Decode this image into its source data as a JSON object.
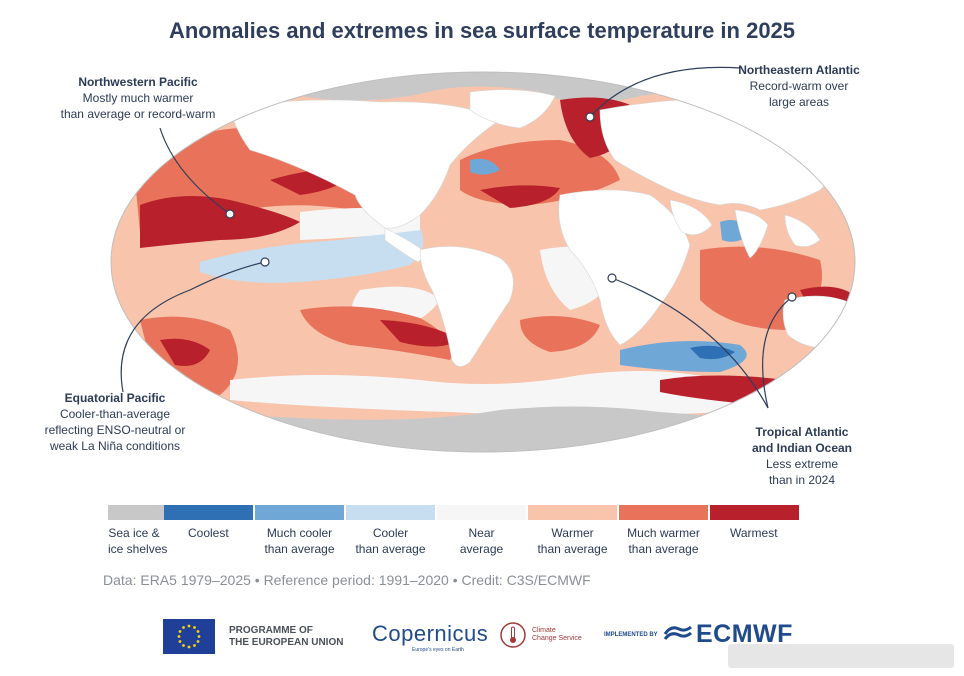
{
  "title": "Anomalies and extremes in sea surface temperature in 2025",
  "annotations": {
    "nw_pacific": {
      "heading": "Northwestern Pacific",
      "lines": [
        "Mostly much warmer",
        "than average or record-warm"
      ]
    },
    "ne_atlantic": {
      "heading": "Northeastern Atlantic",
      "lines": [
        "Record-warm over",
        "large areas"
      ]
    },
    "eq_pacific": {
      "heading": "Equatorial Pacific",
      "lines": [
        "Cooler-than-average",
        "reflecting ENSO-neutral or",
        "weak La Niña conditions"
      ]
    },
    "tropical": {
      "heading_lines": [
        "Tropical Atlantic",
        "and Indian Ocean"
      ],
      "lines": [
        "Less extreme",
        "than in 2024"
      ]
    }
  },
  "legend": [
    {
      "color": "#c8c8c8",
      "label_lines": [
        "Sea ice &",
        "ice shelves"
      ]
    },
    {
      "color": "#2f6fb3",
      "label_lines": [
        "Coolest"
      ]
    },
    {
      "color": "#6fa7d6",
      "label_lines": [
        "Much cooler",
        "than average"
      ]
    },
    {
      "color": "#c7def0",
      "label_lines": [
        "Cooler",
        "than average"
      ]
    },
    {
      "color": "#f6f6f6",
      "label_lines": [
        "Near",
        "average"
      ]
    },
    {
      "color": "#f8c4ac",
      "label_lines": [
        "Warmer",
        "than average"
      ]
    },
    {
      "color": "#e8735a",
      "label_lines": [
        "Much warmer",
        "than average"
      ]
    },
    {
      "color": "#b8202c",
      "label_lines": [
        "Warmest"
      ]
    }
  ],
  "credit": "Data: ERA5 1979–2025 • Reference period: 1991–2020 • Credit: C3S/ECMWF",
  "logos": {
    "eu_lines": [
      "PROGRAMME OF",
      "THE EUROPEAN UNION"
    ],
    "copernicus": "Copernicus",
    "copernicus_tagline": "Europe's eyes on Earth",
    "c3s_lines": [
      "Climate",
      "Change Service"
    ],
    "implemented_by": "IMPLEMENTED BY",
    "ecmwf": "ECMWF"
  }
}
